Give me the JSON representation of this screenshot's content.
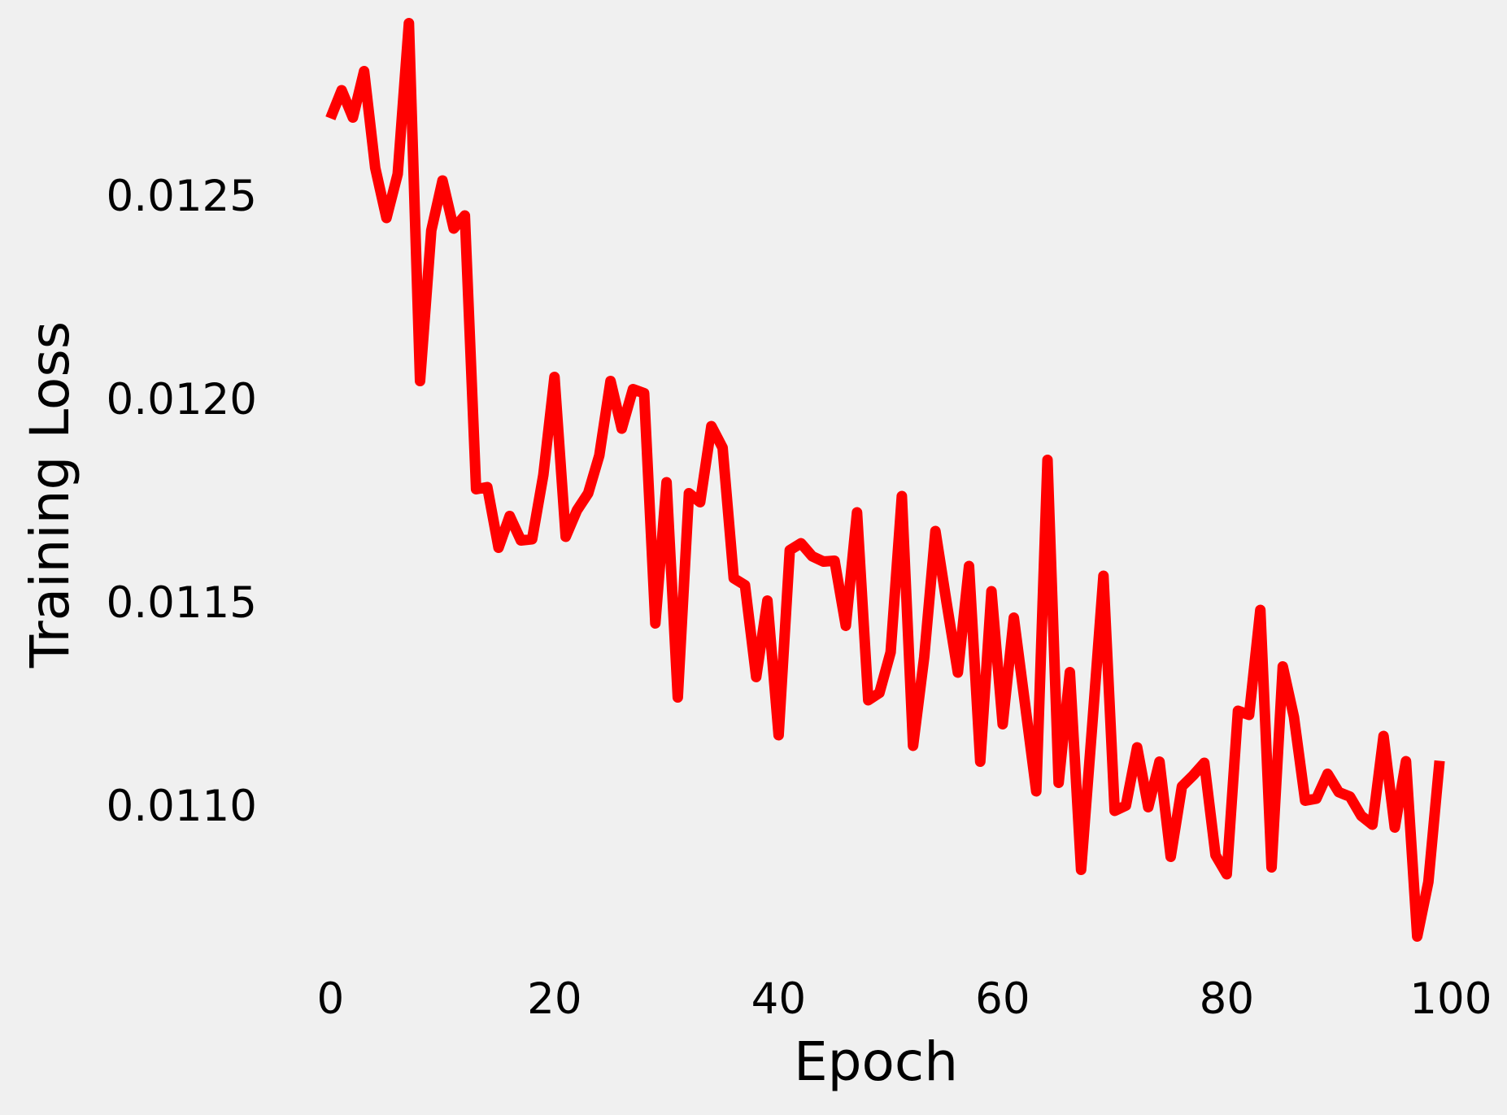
{
  "chart_data": {
    "type": "line",
    "xlabel": "Epoch",
    "ylabel": "Training Loss",
    "xlim": [
      -3,
      99.5
    ],
    "ylim": [
      0.01066,
      0.01294
    ],
    "x_ticks": [
      0,
      20,
      40,
      60,
      80,
      100
    ],
    "y_ticks": [
      0.011,
      0.0115,
      0.012,
      0.0125
    ],
    "y_tick_labels": [
      "0.0110",
      "0.0115",
      "0.0120",
      "0.0125"
    ],
    "grid": false,
    "line_color": "#ff0000",
    "background_color": "#f0f0f0",
    "series": [
      {
        "x": [
          0,
          1,
          2,
          3,
          4,
          5,
          6,
          7,
          8,
          9,
          10,
          11,
          12,
          13,
          14,
          15,
          16,
          17,
          18,
          19,
          20,
          21,
          22,
          23,
          24,
          25,
          26,
          27,
          28,
          29,
          30,
          31,
          32,
          33,
          34,
          35,
          36,
          37,
          38,
          39,
          40,
          41,
          42,
          43,
          44,
          45,
          46,
          47,
          48,
          49,
          50,
          51,
          52,
          53,
          54,
          55,
          56,
          57,
          58,
          59,
          60,
          61,
          62,
          63,
          64,
          65,
          66,
          67,
          68,
          69,
          70,
          71,
          72,
          73,
          74,
          75,
          76,
          77,
          78,
          79,
          80,
          81,
          82,
          83,
          84,
          85,
          86,
          87,
          88,
          89,
          90,
          91,
          92,
          93,
          94,
          95,
          96,
          97,
          98,
          99
        ],
        "values": [
          0.012689,
          0.012758,
          0.012691,
          0.012805,
          0.012567,
          0.012444,
          0.012552,
          0.012923,
          0.012043,
          0.012413,
          0.012536,
          0.012418,
          0.01245,
          0.011777,
          0.011782,
          0.011633,
          0.011711,
          0.011651,
          0.011654,
          0.011812,
          0.012053,
          0.01166,
          0.011725,
          0.011767,
          0.01186,
          0.012043,
          0.011926,
          0.012023,
          0.012013,
          0.011447,
          0.011794,
          0.011265,
          0.011767,
          0.011745,
          0.011932,
          0.011879,
          0.011558,
          0.011541,
          0.011315,
          0.011503,
          0.011172,
          0.011627,
          0.011644,
          0.011612,
          0.011599,
          0.011601,
          0.011441,
          0.01172,
          0.011258,
          0.011276,
          0.011376,
          0.01176,
          0.011146,
          0.011364,
          0.011674,
          0.011497,
          0.011326,
          0.011588,
          0.011107,
          0.011526,
          0.011199,
          0.011461,
          0.011248,
          0.011034,
          0.011849,
          0.011055,
          0.011327,
          0.010841,
          0.011199,
          0.011564,
          0.010986,
          0.010999,
          0.011142,
          0.010995,
          0.011107,
          0.010873,
          0.011046,
          0.011073,
          0.011104,
          0.010877,
          0.01083,
          0.011232,
          0.011222,
          0.01148,
          0.010847,
          0.011341,
          0.011217,
          0.011011,
          0.011016,
          0.011077,
          0.011032,
          0.011021,
          0.010974,
          0.010952,
          0.01117,
          0.010945,
          0.011108,
          0.010677,
          0.010811,
          0.011109
        ]
      }
    ]
  }
}
